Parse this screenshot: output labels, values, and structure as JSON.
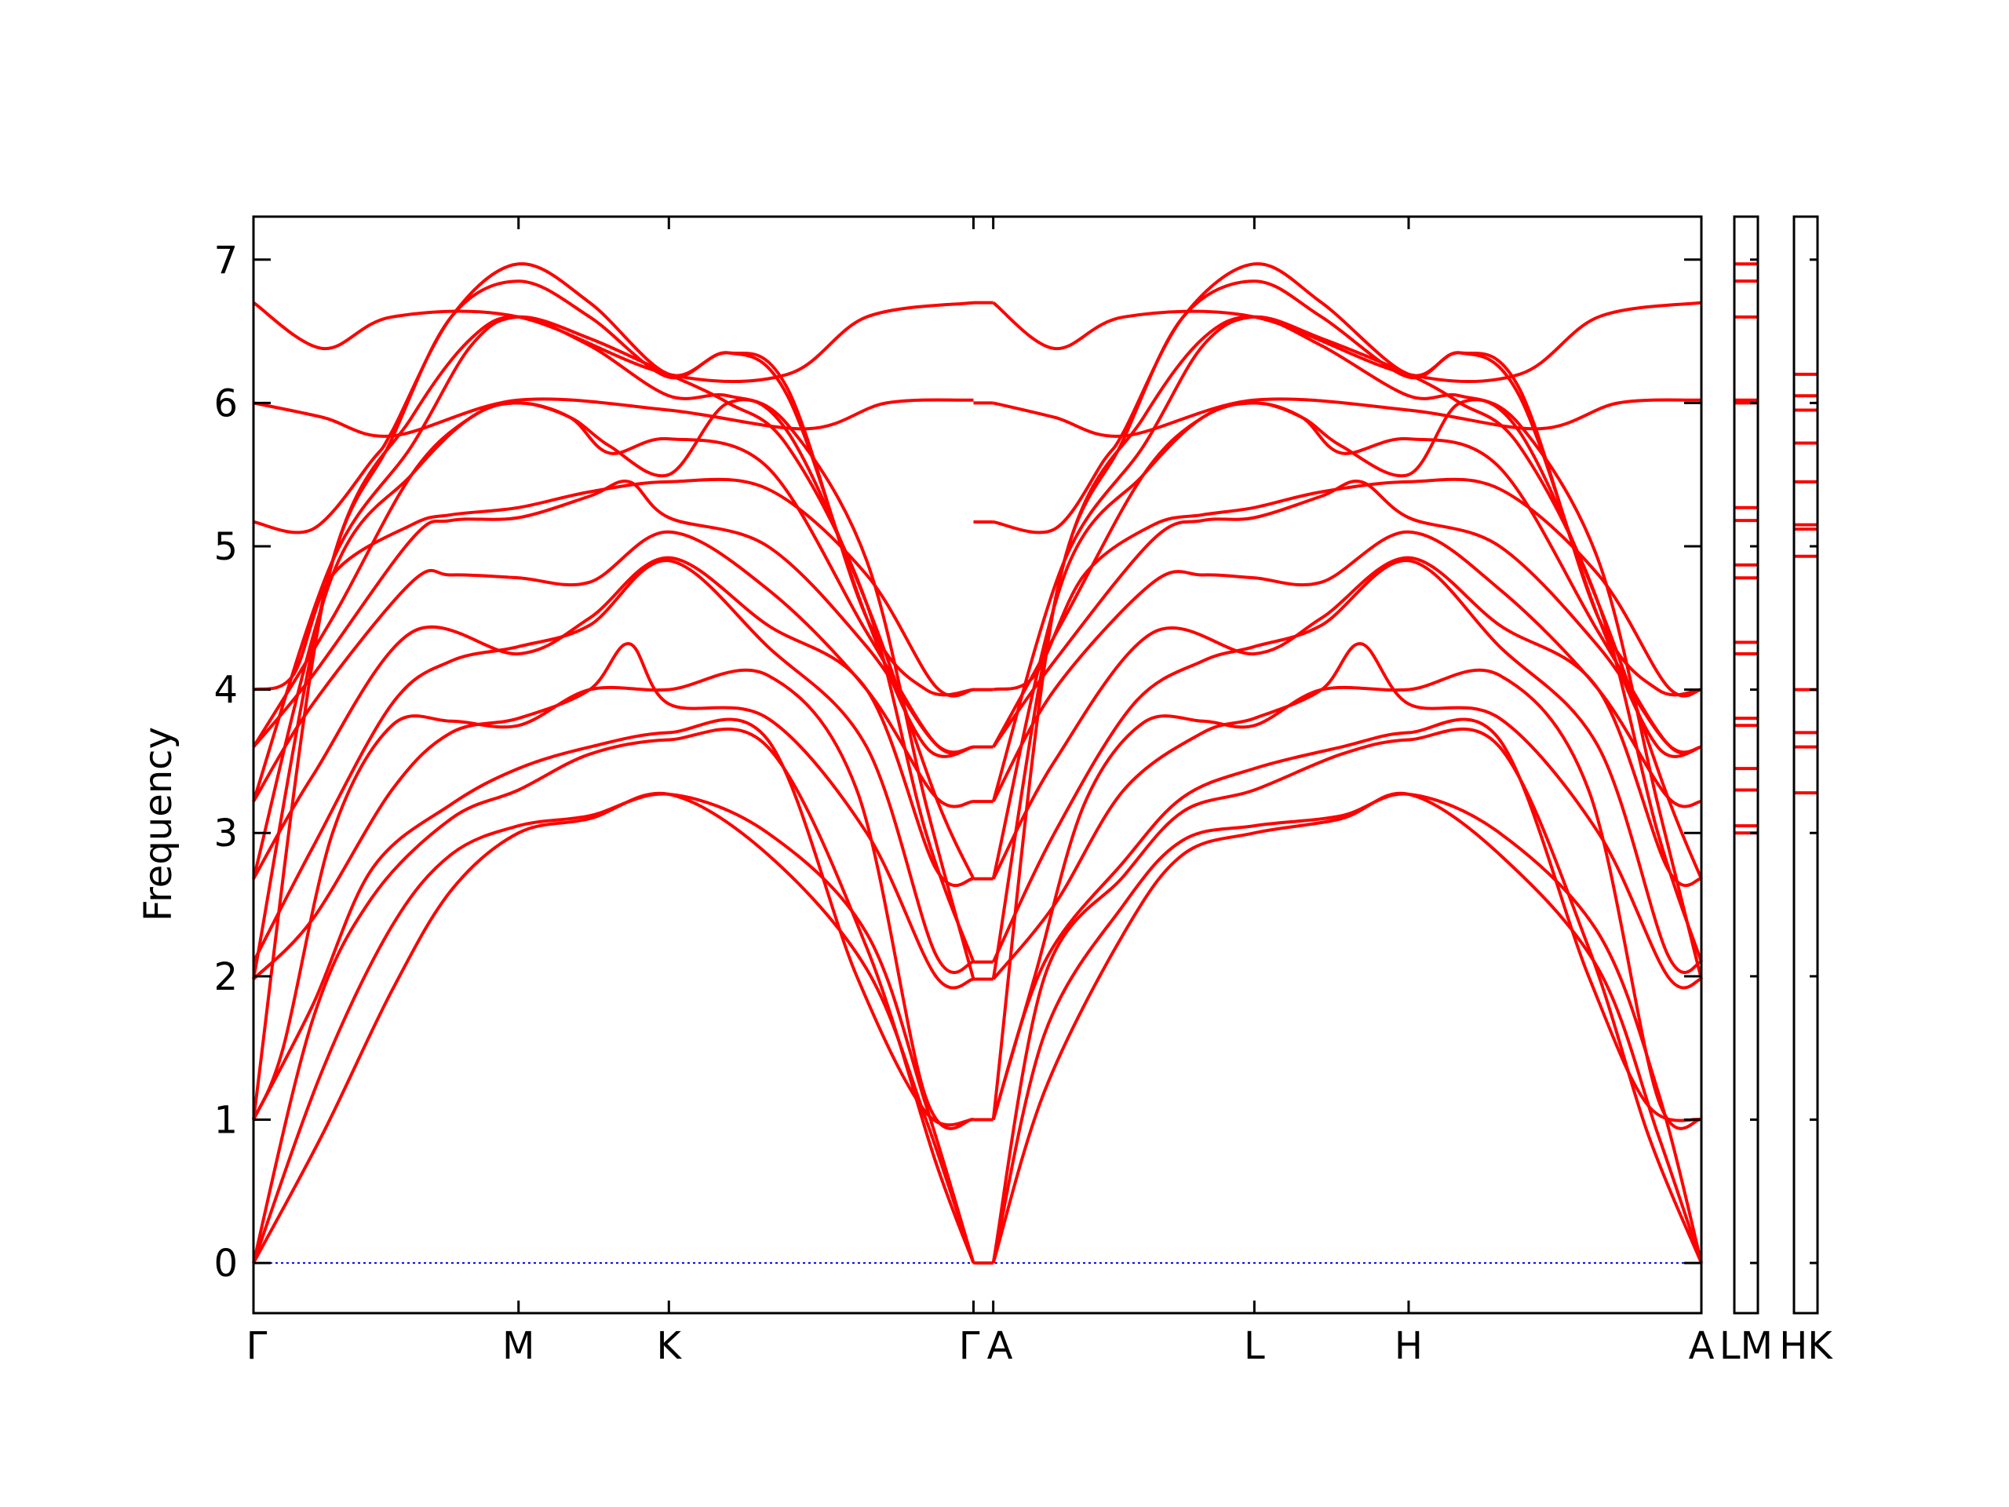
{
  "chart_data": {
    "type": "line",
    "title": "",
    "xlabel": "",
    "ylabel": "Frequency",
    "ylim": [
      -0.35,
      7.3
    ],
    "yticks": [
      0,
      1,
      2,
      3,
      4,
      5,
      6,
      7
    ],
    "grid": false,
    "legend": "none",
    "colors": {
      "bands": "#ff0000",
      "zero_line": "#0000ff",
      "axes": "#000000"
    },
    "path_segments": [
      {
        "name": "Γ-M-K-Γ",
        "xlim": [
          0,
          3.64
        ],
        "ticks": [
          {
            "x": 0,
            "label": "Γ"
          },
          {
            "x": 1.34,
            "label": "M"
          },
          {
            "x": 2.1,
            "label": "K"
          },
          {
            "x": 3.64,
            "label": "Γ"
          }
        ]
      },
      {
        "name": "A-L-H-A",
        "xlim": [
          3.74,
          7.32
        ],
        "ticks": [
          {
            "x": 3.74,
            "label": "A"
          },
          {
            "x": 5.06,
            "label": "L"
          },
          {
            "x": 5.84,
            "label": "H"
          },
          {
            "x": 7.32,
            "label": "A"
          }
        ]
      }
    ],
    "side_panels": [
      {
        "name": "L-M",
        "label": "LM",
        "levels": [
          3.0,
          3.05,
          3.3,
          3.45,
          3.75,
          3.8,
          4.25,
          4.33,
          4.78,
          4.87,
          5.18,
          5.27,
          6.0,
          6.02,
          6.6,
          6.85,
          6.97
        ]
      },
      {
        "name": "H-K",
        "label": "HK",
        "levels": [
          3.28,
          3.6,
          3.7,
          4.0,
          4.93,
          5.12,
          5.15,
          5.45,
          5.72,
          5.95,
          6.05,
          6.2
        ]
      }
    ],
    "series_gamma_m_k_gamma": [
      {
        "x": [
          0,
          0.35,
          0.7,
          1.0,
          1.34,
          1.7,
          2.1,
          2.6,
          3.1,
          3.4,
          3.64
        ],
        "y": [
          0,
          0.9,
          1.9,
          2.6,
          3.0,
          3.1,
          3.27,
          2.85,
          2.05,
          1.0,
          0
        ]
      },
      {
        "x": [
          0,
          0.35,
          0.7,
          1.0,
          1.34,
          1.7,
          2.1,
          2.6,
          3.1,
          3.4,
          3.64
        ],
        "y": [
          0,
          1.35,
          2.35,
          2.85,
          3.05,
          3.12,
          3.27,
          3.0,
          2.3,
          1.1,
          0
        ]
      },
      {
        "x": [
          0,
          0.3,
          0.6,
          1.0,
          1.34,
          1.7,
          2.1,
          2.6,
          3.1,
          3.45,
          3.64
        ],
        "y": [
          0,
          1.7,
          2.55,
          3.1,
          3.3,
          3.55,
          3.65,
          3.6,
          2.2,
          0.7,
          0
        ]
      },
      {
        "x": [
          0,
          0.3,
          0.6,
          1.0,
          1.34,
          1.7,
          2.1,
          2.6,
          3.05,
          3.4,
          3.64
        ],
        "y": [
          1.0,
          1.8,
          2.75,
          3.2,
          3.45,
          3.6,
          3.7,
          3.65,
          2.0,
          1.05,
          1.0
        ]
      },
      {
        "x": [
          0,
          0.15,
          0.4,
          0.7,
          1.0,
          1.34,
          1.7,
          2.1,
          2.6,
          3.05,
          3.4,
          3.64
        ],
        "y": [
          1.0,
          1.5,
          3.0,
          3.75,
          3.78,
          3.75,
          4.0,
          4.0,
          4.1,
          3.3,
          1.15,
          1.0
        ]
      },
      {
        "x": [
          0,
          0.3,
          0.7,
          1.0,
          1.34,
          1.7,
          1.9,
          2.1,
          2.6,
          3.1,
          3.45,
          3.64
        ],
        "y": [
          1.98,
          2.4,
          3.3,
          3.7,
          3.8,
          4.0,
          4.32,
          3.9,
          3.8,
          3.0,
          2.0,
          1.98
        ]
      },
      {
        "x": [
          0,
          0.3,
          0.7,
          1.0,
          1.34,
          1.7,
          2.1,
          2.6,
          3.1,
          3.45,
          3.64
        ],
        "y": [
          2.1,
          2.9,
          3.9,
          4.2,
          4.3,
          4.45,
          4.9,
          4.3,
          3.6,
          2.15,
          2.1
        ]
      },
      {
        "x": [
          0,
          0.3,
          0.8,
          1.34,
          1.7,
          2.1,
          2.6,
          3.1,
          3.45,
          3.64
        ],
        "y": [
          2.68,
          3.4,
          4.4,
          4.25,
          4.5,
          4.92,
          4.45,
          4.0,
          2.75,
          2.68
        ]
      },
      {
        "x": [
          0,
          0.3,
          0.8,
          1.0,
          1.34,
          1.7,
          2.1,
          2.6,
          3.1,
          3.45,
          3.64
        ],
        "y": [
          3.22,
          3.9,
          4.75,
          4.8,
          4.78,
          4.75,
          5.1,
          4.7,
          4.0,
          3.25,
          3.22
        ]
      },
      {
        "x": [
          0,
          0.3,
          0.8,
          1.0,
          1.34,
          1.7,
          1.9,
          2.1,
          2.6,
          3.1,
          3.45,
          3.64
        ],
        "y": [
          3.6,
          4.1,
          5.05,
          5.18,
          5.2,
          5.35,
          5.45,
          5.2,
          5.0,
          4.3,
          3.62,
          3.6
        ]
      },
      {
        "x": [
          0,
          0.2,
          0.4,
          0.8,
          1.0,
          1.34,
          1.7,
          2.1,
          2.6,
          3.1,
          3.45,
          3.64
        ],
        "y": [
          4.0,
          4.1,
          4.8,
          5.15,
          5.22,
          5.27,
          5.38,
          5.45,
          5.4,
          4.8,
          4.02,
          4.0
        ]
      },
      {
        "x": [
          0,
          0.4,
          0.8,
          1.1,
          1.34,
          1.6,
          1.8,
          2.1,
          2.6,
          3.1,
          3.45,
          3.64
        ],
        "y": [
          3.6,
          4.5,
          5.5,
          5.9,
          6.0,
          5.9,
          5.65,
          5.75,
          5.55,
          4.4,
          3.62,
          3.6
        ]
      },
      {
        "x": [
          0,
          0.4,
          0.8,
          1.1,
          1.34,
          1.6,
          1.8,
          2.1,
          2.4,
          2.7,
          3.1,
          3.45,
          3.64
        ],
        "y": [
          2.68,
          4.8,
          5.5,
          5.9,
          6.0,
          5.9,
          5.7,
          5.5,
          6.0,
          5.8,
          4.6,
          3.25,
          2.68
        ]
      },
      {
        "x": [
          0,
          0.4,
          0.8,
          1.1,
          1.34,
          1.7,
          2.1,
          2.4,
          2.7,
          3.1,
          3.4,
          3.64
        ],
        "y": [
          3.22,
          4.9,
          5.7,
          6.4,
          6.6,
          6.45,
          6.2,
          6.0,
          5.7,
          4.6,
          3.0,
          2.1
        ]
      },
      {
        "x": [
          0,
          0.4,
          0.8,
          1.1,
          1.34,
          1.7,
          2.1,
          2.4,
          2.7,
          3.1,
          3.4,
          3.64
        ],
        "y": [
          1.98,
          4.9,
          5.9,
          6.45,
          6.6,
          6.4,
          6.05,
          6.05,
          5.85,
          4.9,
          3.2,
          1.98
        ]
      },
      {
        "x": [
          0,
          0.35,
          0.7,
          1.0,
          1.34,
          1.7,
          2.1,
          2.4,
          2.7,
          3.1,
          3.4,
          3.64
        ],
        "y": [
          1.0,
          4.6,
          5.75,
          6.6,
          6.85,
          6.6,
          6.18,
          6.35,
          6.05,
          4.5,
          3.6,
          3.6
        ]
      },
      {
        "x": [
          0,
          0.3,
          0.6,
          0.7,
          1.0,
          1.34,
          1.7,
          2.1,
          2.4,
          2.7,
          3.1,
          3.4,
          3.64
        ],
        "y": [
          5.17,
          5.12,
          5.6,
          5.8,
          6.6,
          6.97,
          6.7,
          6.2,
          6.35,
          6.1,
          4.5,
          4.0,
          4.0
        ]
      },
      {
        "x": [
          0,
          0.35,
          0.7,
          1.34,
          2.1,
          2.8,
          3.2,
          3.64
        ],
        "y": [
          6.0,
          5.9,
          5.77,
          6.02,
          5.95,
          5.82,
          6.0,
          6.02
        ]
      },
      {
        "x": [
          0,
          0.35,
          0.7,
          1.34,
          2.1,
          2.7,
          3.1,
          3.64
        ],
        "y": [
          6.7,
          6.38,
          6.6,
          6.6,
          6.2,
          6.2,
          6.6,
          6.7
        ]
      }
    ],
    "series_a_l_h_a": [
      {
        "x": [
          3.74,
          4.0,
          4.4,
          4.7,
          5.06,
          5.5,
          5.84,
          6.3,
          6.8,
          7.1,
          7.32
        ],
        "y": [
          0,
          1.2,
          2.3,
          2.85,
          3.0,
          3.1,
          3.27,
          2.85,
          2.05,
          0.9,
          0
        ]
      },
      {
        "x": [
          3.74,
          4.0,
          4.4,
          4.7,
          5.06,
          5.5,
          5.84,
          6.3,
          6.8,
          7.1,
          7.32
        ],
        "y": [
          0,
          1.6,
          2.5,
          2.95,
          3.05,
          3.12,
          3.27,
          3.0,
          2.3,
          1.2,
          0
        ]
      },
      {
        "x": [
          3.74,
          4.0,
          4.4,
          4.7,
          5.06,
          5.5,
          5.84,
          6.3,
          6.75,
          7.05,
          7.32
        ],
        "y": [
          0,
          2.0,
          2.7,
          3.15,
          3.3,
          3.55,
          3.65,
          3.6,
          2.2,
          0.9,
          0
        ]
      },
      {
        "x": [
          3.74,
          4.0,
          4.4,
          4.7,
          5.06,
          5.5,
          5.84,
          6.3,
          6.75,
          7.05,
          7.32
        ],
        "y": [
          1.0,
          2.1,
          2.8,
          3.25,
          3.45,
          3.6,
          3.7,
          3.65,
          2.0,
          1.1,
          1.0
        ]
      },
      {
        "x": [
          3.74,
          3.95,
          4.2,
          4.5,
          4.8,
          5.06,
          5.4,
          5.84,
          6.3,
          6.75,
          7.1,
          7.32
        ],
        "y": [
          1.0,
          2.0,
          3.2,
          3.77,
          3.78,
          3.75,
          4.0,
          4.0,
          4.1,
          3.3,
          1.15,
          1.0
        ]
      },
      {
        "x": [
          3.74,
          4.05,
          4.4,
          4.8,
          5.06,
          5.4,
          5.6,
          5.84,
          6.3,
          6.8,
          7.15,
          7.32
        ],
        "y": [
          1.98,
          2.5,
          3.3,
          3.7,
          3.8,
          4.0,
          4.32,
          3.9,
          3.8,
          3.0,
          2.0,
          1.98
        ]
      },
      {
        "x": [
          3.74,
          4.05,
          4.45,
          4.8,
          5.06,
          5.4,
          5.84,
          6.3,
          6.8,
          7.15,
          7.32
        ],
        "y": [
          2.1,
          3.0,
          3.9,
          4.2,
          4.3,
          4.45,
          4.9,
          4.3,
          3.6,
          2.15,
          2.1
        ]
      },
      {
        "x": [
          3.74,
          4.05,
          4.55,
          5.06,
          5.4,
          5.84,
          6.3,
          6.8,
          7.15,
          7.32
        ],
        "y": [
          2.68,
          3.5,
          4.4,
          4.25,
          4.5,
          4.92,
          4.45,
          4.0,
          2.75,
          2.68
        ]
      },
      {
        "x": [
          3.74,
          4.05,
          4.55,
          4.8,
          5.06,
          5.4,
          5.84,
          6.3,
          6.8,
          7.15,
          7.32
        ],
        "y": [
          3.22,
          4.0,
          4.75,
          4.8,
          4.78,
          4.75,
          5.1,
          4.7,
          4.0,
          3.25,
          3.22
        ]
      },
      {
        "x": [
          3.74,
          4.05,
          4.55,
          4.8,
          5.06,
          5.4,
          5.6,
          5.84,
          6.3,
          6.8,
          7.15,
          7.32
        ],
        "y": [
          3.6,
          4.2,
          5.05,
          5.18,
          5.2,
          5.35,
          5.45,
          5.2,
          5.0,
          4.3,
          3.62,
          3.6
        ]
      },
      {
        "x": [
          3.74,
          3.95,
          4.2,
          4.55,
          4.8,
          5.06,
          5.4,
          5.84,
          6.3,
          6.8,
          7.15,
          7.32
        ],
        "y": [
          4.0,
          4.1,
          4.8,
          5.15,
          5.22,
          5.27,
          5.38,
          5.45,
          5.4,
          4.8,
          4.02,
          4.0
        ]
      },
      {
        "x": [
          3.74,
          4.1,
          4.5,
          4.8,
          5.06,
          5.3,
          5.5,
          5.84,
          6.3,
          6.8,
          7.15,
          7.32
        ],
        "y": [
          3.6,
          4.5,
          5.5,
          5.9,
          6.0,
          5.9,
          5.65,
          5.75,
          5.55,
          4.4,
          3.62,
          3.6
        ]
      },
      {
        "x": [
          3.74,
          4.1,
          4.5,
          4.8,
          5.06,
          5.3,
          5.5,
          5.84,
          6.1,
          6.4,
          6.8,
          7.15,
          7.32
        ],
        "y": [
          2.68,
          4.8,
          5.5,
          5.9,
          6.0,
          5.9,
          5.7,
          5.5,
          6.0,
          5.8,
          4.6,
          3.25,
          2.68
        ]
      },
      {
        "x": [
          3.74,
          4.1,
          4.5,
          4.8,
          5.06,
          5.4,
          5.84,
          6.1,
          6.4,
          6.8,
          7.1,
          7.32
        ],
        "y": [
          3.22,
          4.9,
          5.7,
          6.4,
          6.6,
          6.45,
          6.2,
          6.0,
          5.7,
          4.6,
          3.0,
          2.1
        ]
      },
      {
        "x": [
          3.74,
          4.1,
          4.5,
          4.8,
          5.06,
          5.4,
          5.84,
          6.1,
          6.4,
          6.8,
          7.1,
          7.32
        ],
        "y": [
          1.98,
          4.9,
          5.9,
          6.45,
          6.6,
          6.4,
          6.05,
          6.05,
          5.85,
          4.9,
          3.2,
          1.98
        ]
      },
      {
        "x": [
          3.74,
          4.05,
          4.4,
          4.7,
          5.06,
          5.4,
          5.84,
          6.1,
          6.4,
          6.8,
          7.1,
          7.32
        ],
        "y": [
          1.0,
          4.6,
          5.75,
          6.6,
          6.85,
          6.6,
          6.18,
          6.35,
          6.05,
          4.5,
          3.6,
          3.6
        ]
      },
      {
        "x": [
          3.74,
          4.05,
          4.3,
          4.4,
          4.7,
          5.06,
          5.4,
          5.84,
          6.1,
          6.4,
          6.8,
          7.1,
          7.32
        ],
        "y": [
          5.17,
          5.12,
          5.6,
          5.8,
          6.6,
          6.97,
          6.7,
          6.2,
          6.35,
          6.1,
          4.5,
          4.0,
          4.0
        ]
      },
      {
        "x": [
          3.74,
          4.05,
          4.4,
          5.06,
          5.84,
          6.5,
          6.9,
          7.32
        ],
        "y": [
          6.0,
          5.9,
          5.77,
          6.02,
          5.95,
          5.82,
          6.0,
          6.02
        ]
      },
      {
        "x": [
          3.74,
          4.05,
          4.4,
          5.06,
          5.84,
          6.4,
          6.8,
          7.32
        ],
        "y": [
          6.7,
          6.38,
          6.6,
          6.6,
          6.2,
          6.2,
          6.6,
          6.7
        ]
      }
    ]
  }
}
